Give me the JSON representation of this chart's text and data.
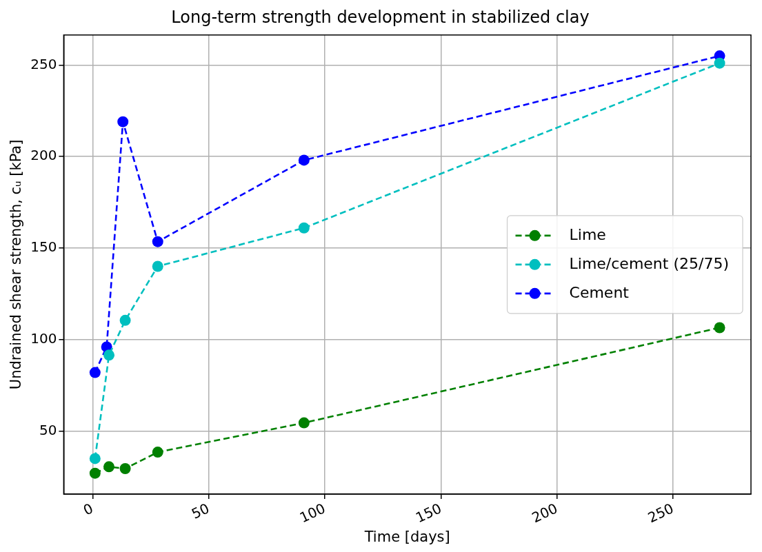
{
  "chart_data": {
    "type": "line",
    "title": "Long-term strength development in stabilized clay",
    "xlabel": "Time [days]",
    "ylabel": "Undrained shear strength, cᵤ [kPa]",
    "xlim": [
      -12.5,
      283.5
    ],
    "xticks": [
      0,
      50,
      100,
      150,
      200,
      250
    ],
    "ylim": [
      15.6,
      266.4
    ],
    "yticks": [
      50,
      100,
      150,
      200,
      250
    ],
    "grid": true,
    "legend": "right",
    "marker": "circle",
    "line_style": "dashed",
    "series": [
      {
        "name": "Lime",
        "color": "#008000",
        "x": [
          1,
          7,
          14,
          28,
          91,
          270
        ],
        "values": [
          27,
          30.5,
          29.5,
          38.5,
          54.5,
          106.5
        ]
      },
      {
        "name": "Lime/cement (25/75)",
        "color": "#00bfbf",
        "x": [
          1,
          7,
          14,
          28,
          91,
          270
        ],
        "values": [
          35,
          91.5,
          110.5,
          140,
          161,
          251
        ]
      },
      {
        "name": "Cement",
        "color": "#0000ff",
        "x": [
          1,
          6,
          13,
          28,
          91,
          270
        ],
        "values": [
          82,
          96,
          219,
          153.5,
          198,
          255
        ]
      }
    ]
  }
}
